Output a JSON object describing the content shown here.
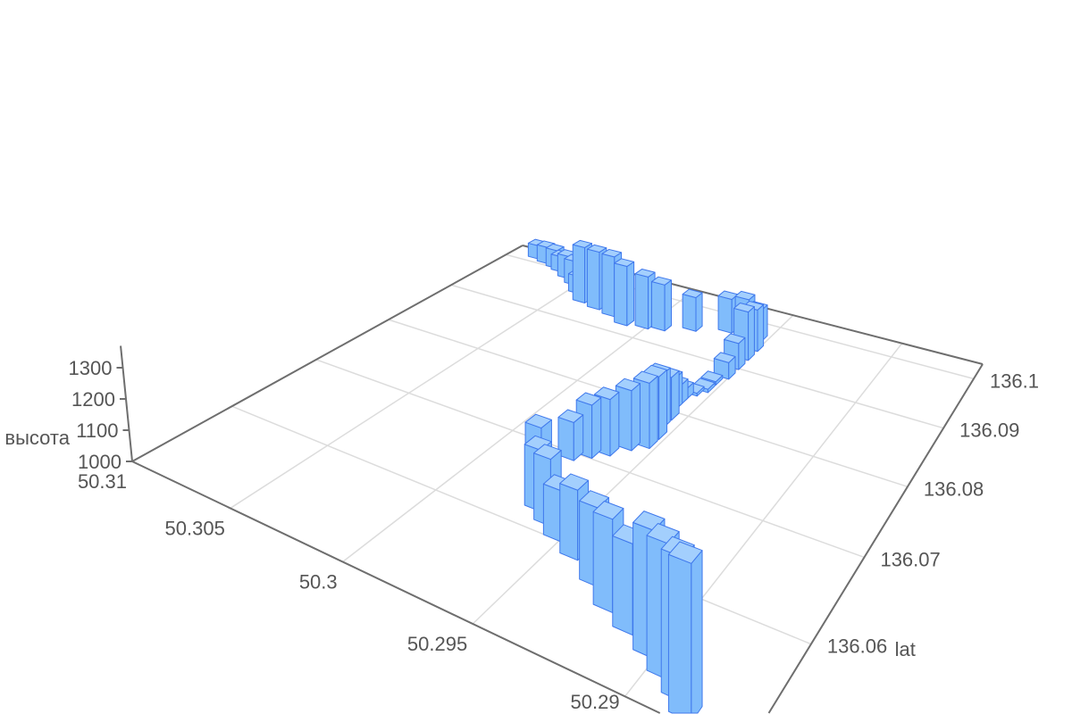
{
  "chart_data": {
    "type": "bar3D",
    "title": "",
    "x_axis": {
      "name": "",
      "range": [
        50.2866,
        50.31
      ],
      "ticks": [
        "50.31",
        "50.305",
        "50.3",
        "50.295",
        "50.29"
      ]
    },
    "y_axis": {
      "name": "lat",
      "range": [
        136.05,
        136.1033
      ],
      "ticks": [
        "136.06",
        "136.07",
        "136.08",
        "136.09",
        "136.1"
      ]
    },
    "z_axis": {
      "name": "высота",
      "range": [
        1000,
        1370
      ],
      "ticks": [
        "1000",
        "1100",
        "1200",
        "1300"
      ]
    },
    "grid": true,
    "colors": {
      "bar": "#80bcfb",
      "bar_top": "#a3cffd",
      "bar_edge": "#3f78ec",
      "axis": "#6e6e6e",
      "grid": "#dcdcdc"
    },
    "bars_fields": [
      "x",
      "y",
      "z"
    ],
    "bars": [
      [
        50.3086,
        136.1017,
        1061
      ],
      [
        50.30789,
        136.10117,
        1074
      ],
      [
        50.30719,
        136.10064,
        1080
      ],
      [
        50.30672,
        136.1001,
        1068
      ],
      [
        50.30602,
        136.09904,
        1098
      ],
      [
        50.30532,
        136.09797,
        1104
      ],
      [
        50.30462,
        136.09637,
        1074
      ],
      [
        50.30392,
        136.09477,
        1234
      ],
      [
        50.30298,
        136.09424,
        1240
      ],
      [
        50.30204,
        136.09371,
        1246
      ],
      [
        50.30111,
        136.09264,
        1240
      ],
      [
        50.30017,
        136.09317,
        1209
      ],
      [
        50.29947,
        136.09371,
        1184
      ],
      [
        50.2983,
        136.09531,
        1135
      ],
      [
        50.2969,
        136.0969,
        1135
      ],
      [
        50.29619,
        136.09744,
        1141
      ],
      [
        50.29549,
        136.0969,
        1123
      ],
      [
        50.29526,
        136.09477,
        1160
      ],
      [
        50.29526,
        136.09264,
        1184
      ],
      [
        50.29526,
        136.09051,
        1098
      ],
      [
        50.29526,
        136.08838,
        1061
      ],
      [
        50.29549,
        136.08678,
        1012
      ],
      [
        50.29549,
        136.08518,
        1012
      ],
      [
        50.29573,
        136.08411,
        1010
      ],
      [
        50.29596,
        136.08305,
        1037
      ],
      [
        50.29596,
        136.08198,
        1068
      ],
      [
        50.29596,
        136.08091,
        1111
      ],
      [
        50.29573,
        136.07932,
        1147
      ],
      [
        50.29573,
        136.07772,
        1184
      ],
      [
        50.29549,
        136.07612,
        1209
      ],
      [
        50.29549,
        136.07452,
        1215
      ],
      [
        50.29596,
        136.07345,
        1197
      ],
      [
        50.29643,
        136.07185,
        1184
      ],
      [
        50.2969,
        136.07079,
        1172
      ],
      [
        50.29736,
        136.06972,
        1123
      ],
      [
        50.29713,
        136.06439,
        1209
      ],
      [
        50.29666,
        136.06279,
        1184
      ],
      [
        50.29596,
        136.06173,
        1197
      ],
      [
        50.29526,
        136.06066,
        1147
      ],
      [
        50.29432,
        136.05959,
        1197
      ],
      [
        50.29315,
        136.058,
        1215
      ],
      [
        50.29222,
        136.0564,
        1246
      ],
      [
        50.29128,
        136.05533,
        1234
      ],
      [
        50.29034,
        136.05426,
        1320
      ],
      [
        50.28964,
        136.0532,
        1332
      ],
      [
        50.28894,
        136.05213,
        1344
      ],
      [
        50.28847,
        136.05107,
        1369
      ]
    ]
  }
}
